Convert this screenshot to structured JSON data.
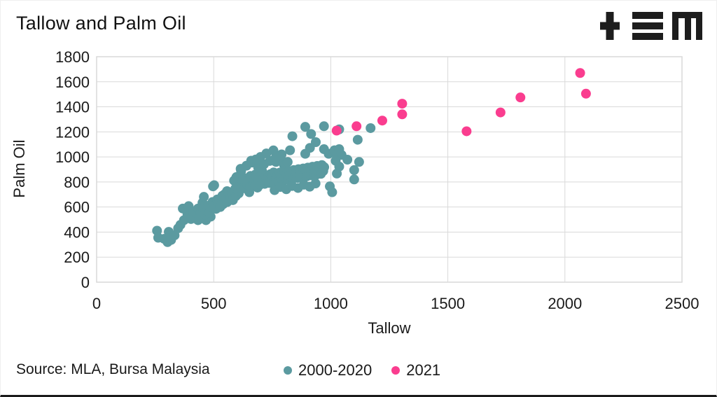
{
  "header": {
    "title": "Tallow and Palm Oil",
    "logo_name": "tem-logo"
  },
  "footer": {
    "source": "Source: MLA, Bursa Malaysia"
  },
  "colors": {
    "teal": "#5b9aa0",
    "pink": "#fa3d8f",
    "grid": "#d9d9d9",
    "text": "#1a1a1a",
    "logo": "#1d1d1d"
  },
  "chart_data": {
    "type": "scatter",
    "title": "Tallow and Palm Oil",
    "xlabel": "Tallow",
    "ylabel": "Palm Oil",
    "xlim": [
      0,
      2500
    ],
    "ylim": [
      0,
      1800
    ],
    "xticks": [
      0,
      500,
      1000,
      1500,
      2000,
      2500
    ],
    "yticks": [
      0,
      200,
      400,
      600,
      800,
      1000,
      1200,
      1400,
      1600,
      1800
    ],
    "grid": true,
    "legend_position": "bottom",
    "marker_radius": 7,
    "series": [
      {
        "name": "2000-2020",
        "color": "#5b9aa0",
        "points": [
          [
            258,
            411
          ],
          [
            263,
            355
          ],
          [
            288,
            346
          ],
          [
            303,
            320
          ],
          [
            308,
            402
          ],
          [
            318,
            337
          ],
          [
            333,
            374
          ],
          [
            348,
            430
          ],
          [
            358,
            458
          ],
          [
            373,
            495
          ],
          [
            388,
            541
          ],
          [
            403,
            504
          ],
          [
            418,
            523
          ],
          [
            433,
            495
          ],
          [
            448,
            532
          ],
          [
            467,
            495
          ],
          [
            487,
            523
          ],
          [
            368,
            588
          ],
          [
            393,
            607
          ],
          [
            413,
            560
          ],
          [
            433,
            588
          ],
          [
            452,
            634
          ],
          [
            472,
            607
          ],
          [
            458,
            681
          ],
          [
            497,
            765
          ],
          [
            517,
            653
          ],
          [
            537,
            690
          ],
          [
            557,
            727
          ],
          [
            577,
            690
          ],
          [
            592,
            746
          ],
          [
            607,
            709
          ],
          [
            617,
            886
          ],
          [
            597,
            839
          ],
          [
            637,
            820
          ],
          [
            657,
            848
          ],
          [
            672,
            802
          ],
          [
            687,
            755
          ],
          [
            652,
            718
          ],
          [
            707,
            858
          ],
          [
            502,
            774
          ],
          [
            587,
            811
          ],
          [
            617,
            895
          ],
          [
            632,
            830
          ],
          [
            660,
            970
          ],
          [
            677,
            858
          ],
          [
            707,
            886
          ],
          [
            737,
            830
          ],
          [
            756,
            876
          ],
          [
            766,
            960
          ],
          [
            786,
            988
          ],
          [
            796,
            858
          ],
          [
            801,
            932
          ],
          [
            816,
            960
          ],
          [
            826,
            1053
          ],
          [
            836,
            1165
          ],
          [
            891,
            1240
          ],
          [
            891,
            1025
          ],
          [
            911,
            1072
          ],
          [
            916,
            1183
          ],
          [
            936,
            1118
          ],
          [
            971,
            1245
          ],
          [
            971,
            1062
          ],
          [
            991,
            1025
          ],
          [
            1016,
            1053
          ],
          [
            1026,
            1006
          ],
          [
            1036,
            1062
          ],
          [
            1036,
            1220
          ],
          [
            1046,
            1016
          ],
          [
            1071,
            978
          ],
          [
            1115,
            1137
          ],
          [
            1170,
            1230
          ],
          [
            1021,
            969
          ],
          [
            1026,
            867
          ],
          [
            1036,
            923
          ],
          [
            996,
            765
          ],
          [
            1100,
            895
          ],
          [
            1100,
            820
          ],
          [
            1121,
            960
          ],
          [
            1006,
            718
          ],
          [
            438,
            512
          ],
          [
            445,
            560
          ],
          [
            455,
            585
          ],
          [
            462,
            540
          ],
          [
            470,
            570
          ],
          [
            478,
            610
          ],
          [
            482,
            555
          ],
          [
            490,
            598
          ],
          [
            495,
            640
          ],
          [
            505,
            615
          ],
          [
            510,
            585
          ],
          [
            515,
            660
          ],
          [
            520,
            628
          ],
          [
            528,
            600
          ],
          [
            535,
            655
          ],
          [
            540,
            622
          ],
          [
            545,
            700
          ],
          [
            552,
            668
          ],
          [
            558,
            640
          ],
          [
            565,
            705
          ],
          [
            570,
            672
          ],
          [
            578,
            712
          ],
          [
            582,
            655
          ],
          [
            590,
            722
          ],
          [
            595,
            688
          ],
          [
            600,
            760
          ],
          [
            605,
            730
          ],
          [
            612,
            775
          ],
          [
            618,
            745
          ],
          [
            622,
            810
          ],
          [
            628,
            762
          ],
          [
            635,
            790
          ],
          [
            640,
            745
          ],
          [
            645,
            775
          ],
          [
            650,
            805
          ],
          [
            655,
            762
          ],
          [
            662,
            835
          ],
          [
            668,
            788
          ],
          [
            672,
            818
          ],
          [
            678,
            772
          ],
          [
            682,
            842
          ],
          [
            688,
            795
          ],
          [
            692,
            825
          ],
          [
            698,
            778
          ],
          [
            702,
            848
          ],
          [
            708,
            800
          ],
          [
            712,
            830
          ],
          [
            718,
            785
          ],
          [
            722,
            852
          ],
          [
            728,
            808
          ],
          [
            732,
            838
          ],
          [
            738,
            792
          ],
          [
            742,
            862
          ],
          [
            748,
            815
          ],
          [
            752,
            845
          ],
          [
            758,
            798
          ],
          [
            762,
            868
          ],
          [
            768,
            822
          ],
          [
            772,
            852
          ],
          [
            778,
            805
          ],
          [
            782,
            875
          ],
          [
            788,
            828
          ],
          [
            792,
            858
          ],
          [
            798,
            812
          ],
          [
            802,
            882
          ],
          [
            808,
            835
          ],
          [
            812,
            865
          ],
          [
            818,
            818
          ],
          [
            822,
            888
          ],
          [
            828,
            842
          ],
          [
            832,
            872
          ],
          [
            838,
            825
          ],
          [
            842,
            895
          ],
          [
            848,
            848
          ],
          [
            852,
            878
          ],
          [
            858,
            832
          ],
          [
            862,
            902
          ],
          [
            868,
            855
          ],
          [
            872,
            885
          ],
          [
            878,
            838
          ],
          [
            882,
            908
          ],
          [
            888,
            862
          ],
          [
            892,
            892
          ],
          [
            898,
            845
          ],
          [
            902,
            915
          ],
          [
            908,
            868
          ],
          [
            912,
            898
          ],
          [
            918,
            852
          ],
          [
            922,
            922
          ],
          [
            928,
            875
          ],
          [
            932,
            905
          ],
          [
            938,
            858
          ],
          [
            942,
            928
          ],
          [
            948,
            882
          ],
          [
            952,
            912
          ],
          [
            958,
            865
          ],
          [
            962,
            935
          ],
          [
            968,
            888
          ],
          [
            972,
            918
          ],
          [
            615,
            905
          ],
          [
            640,
            930
          ],
          [
            665,
            955
          ],
          [
            690,
            915
          ],
          [
            715,
            942
          ],
          [
            740,
            968
          ],
          [
            765,
            995
          ],
          [
            790,
            1020
          ],
          [
            700,
            1000
          ],
          [
            725,
            1028
          ],
          [
            680,
            980
          ],
          [
            755,
            1052
          ],
          [
            760,
            735
          ],
          [
            785,
            760
          ],
          [
            810,
            742
          ],
          [
            835,
            768
          ],
          [
            860,
            752
          ],
          [
            885,
            778
          ],
          [
            910,
            762
          ],
          [
            935,
            788
          ]
        ]
      },
      {
        "name": "2021",
        "color": "#fa3d8f",
        "points": [
          [
            1025,
            1210
          ],
          [
            1110,
            1245
          ],
          [
            1220,
            1290
          ],
          [
            1305,
            1340
          ],
          [
            1305,
            1425
          ],
          [
            1580,
            1205
          ],
          [
            1725,
            1355
          ],
          [
            1810,
            1475
          ],
          [
            2065,
            1670
          ],
          [
            2090,
            1505
          ]
        ]
      }
    ]
  }
}
